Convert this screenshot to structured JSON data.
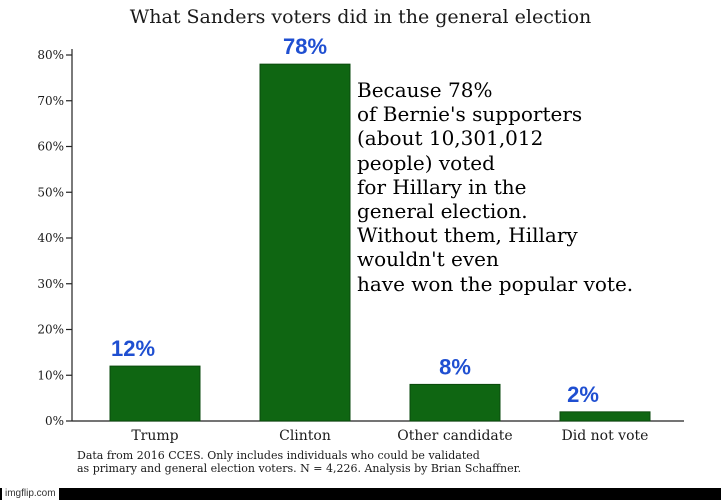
{
  "chart_data": {
    "type": "bar",
    "title": "What Sanders voters did in the general election",
    "categories": [
      "Trump",
      "Clinton",
      "Other candidate",
      "Did not vote"
    ],
    "values": [
      12,
      78,
      8,
      2
    ],
    "value_labels": [
      "12%",
      "78%",
      "8%",
      "2%"
    ],
    "ylim": [
      0,
      80
    ],
    "yticks": [
      0,
      10,
      20,
      30,
      40,
      50,
      60,
      70,
      80
    ],
    "ytick_labels": [
      "0%",
      "10%",
      "20%",
      "30%",
      "40%",
      "50%",
      "60%",
      "70%",
      "80%"
    ],
    "xlabel": "",
    "ylabel": "",
    "bar_color": "#0f6612",
    "value_label_color": "#1f4fd1",
    "grid": false
  },
  "annotation": {
    "lines": [
      "Because 78%",
      "of Bernie's supporters",
      "(about 10,301,012",
      "people) voted",
      "for Hillary in the",
      "general election.",
      "Without them, Hillary",
      "wouldn't even",
      "have won the popular vote."
    ]
  },
  "source_note": {
    "line1": "Data from 2016 CCES. Only includes individuals who could be validated",
    "line2": "as primary and general election voters. N = 4,226. Analysis by Brian Schaffner."
  },
  "watermark": "imgflip.com"
}
